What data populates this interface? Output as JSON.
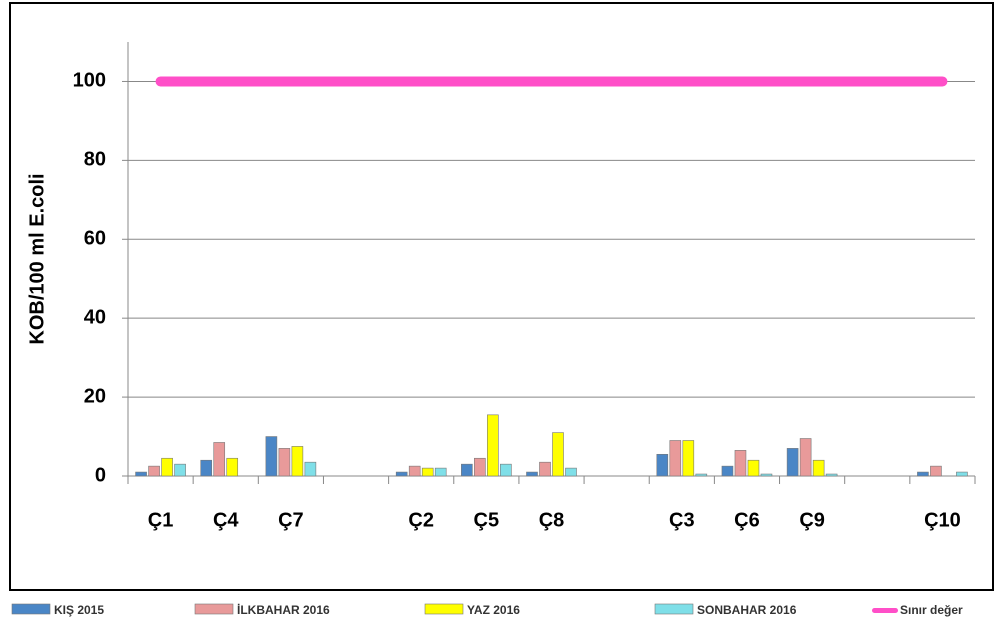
{
  "chart_data": {
    "type": "bar",
    "y_label": "KOB/100 ml E.coli",
    "categories": [
      "Ç1",
      "Ç4",
      "Ç7",
      null,
      "Ç2",
      "Ç5",
      "Ç8",
      null,
      "Ç3",
      "Ç6",
      "Ç9",
      null,
      "Ç10"
    ],
    "series": [
      {
        "name": "KIŞ 2015",
        "color": "#4a86c6",
        "values": [
          1,
          4,
          10,
          null,
          1,
          3,
          1,
          null,
          5.5,
          2.5,
          7,
          null,
          1
        ]
      },
      {
        "name": "İLKBAHAR 2016",
        "color": "#e89a9a",
        "values": [
          2.5,
          8.5,
          7,
          null,
          2.5,
          4.5,
          3.5,
          null,
          9,
          6.5,
          9.5,
          null,
          2.5
        ]
      },
      {
        "name": "YAZ 2016",
        "color": "#ffff00",
        "values": [
          4.5,
          4.5,
          7.5,
          null,
          2,
          15.5,
          11,
          null,
          9,
          4,
          4,
          null,
          0
        ]
      },
      {
        "name": "SONBAHAR 2016",
        "color": "#7fdfe8",
        "values": [
          3,
          0,
          3.5,
          null,
          2,
          3,
          2,
          null,
          0.5,
          0.5,
          0.5,
          null,
          1
        ]
      },
      {
        "name": "Sınır değer",
        "color": "#ff4fc8",
        "type": "line",
        "values": [
          100,
          100,
          100,
          100,
          100,
          100,
          100,
          100,
          100,
          100,
          100,
          100,
          100
        ]
      }
    ],
    "ylim": [
      0,
      110
    ],
    "yticks": [
      0,
      20,
      40,
      60,
      80,
      100
    ],
    "grid": true,
    "legend": "bottom"
  }
}
